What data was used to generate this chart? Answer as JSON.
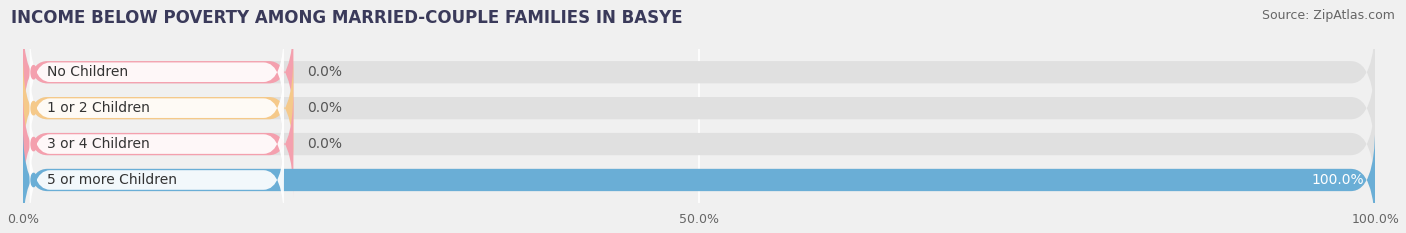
{
  "title": "INCOME BELOW POVERTY AMONG MARRIED-COUPLE FAMILIES IN BASYE",
  "source": "Source: ZipAtlas.com",
  "categories": [
    "No Children",
    "1 or 2 Children",
    "3 or 4 Children",
    "5 or more Children"
  ],
  "values": [
    0.0,
    0.0,
    0.0,
    100.0
  ],
  "bar_colors": [
    "#f4a0ae",
    "#f5c98a",
    "#f4a0ae",
    "#6aaed6"
  ],
  "value_labels": [
    "0.0%",
    "0.0%",
    "0.0%",
    "100.0%"
  ],
  "xlim": [
    0,
    100
  ],
  "xticks": [
    0,
    50,
    100
  ],
  "xtick_labels": [
    "0.0%",
    "50.0%",
    "100.0%"
  ],
  "background_color": "#f0f0f0",
  "bar_background_color": "#e0e0e0",
  "title_fontsize": 12,
  "source_fontsize": 9,
  "bar_height": 0.62,
  "bar_label_fontsize": 10,
  "value_label_fontsize": 10
}
